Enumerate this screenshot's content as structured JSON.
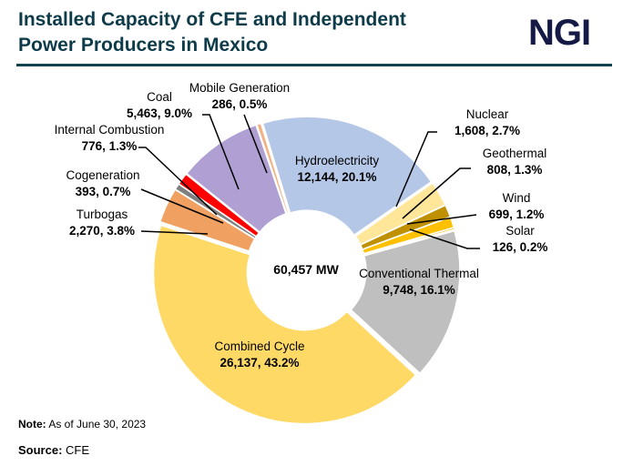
{
  "header": {
    "title_line1": "Installed Capacity of CFE and Independent",
    "title_line2": "Power Producers in Mexico",
    "logo": "NGI"
  },
  "chart_data": {
    "type": "pie",
    "donut": true,
    "title": "Installed Capacity of CFE and Independent Power Producers in Mexico",
    "total_label": "60,457 MW",
    "slices": [
      {
        "name": "Hydroelectricity",
        "value": 12144,
        "label": "12,144, 20.1%",
        "percent": 20.1,
        "color": "#b4c7e7"
      },
      {
        "name": "Nuclear",
        "value": 1608,
        "label": "1,608, 2.7%",
        "percent": 2.7,
        "color": "#ffe699"
      },
      {
        "name": "Geothermal",
        "value": 808,
        "label": "808, 1.3%",
        "percent": 1.3,
        "color": "#bf9000"
      },
      {
        "name": "Wind",
        "value": 699,
        "label": "699, 1.2%",
        "percent": 1.2,
        "color": "#ffc000"
      },
      {
        "name": "Solar",
        "value": 126,
        "label": "126, 0.2%",
        "percent": 0.2,
        "color": "#f5b800"
      },
      {
        "name": "Conventional Thermal",
        "value": 9748,
        "label": "9,748, 16.1%",
        "percent": 16.1,
        "color": "#bfbfbf"
      },
      {
        "name": "Combined Cycle",
        "value": 26137,
        "label": "26,137, 43.2%",
        "percent": 43.2,
        "color": "#ffd966"
      },
      {
        "name": "Turbogas",
        "value": 2270,
        "label": "2,270, 3.8%",
        "percent": 3.8,
        "color": "#f0a060"
      },
      {
        "name": "Cogeneration",
        "value": 393,
        "label": "393, 0.7%",
        "percent": 0.7,
        "color": "#7f7f7f"
      },
      {
        "name": "Internal Combustion",
        "value": 776,
        "label": "776, 1.3%",
        "percent": 1.3,
        "color": "#ff0000"
      },
      {
        "name": "Coal",
        "value": 5463,
        "label": "5,463, 9.0%",
        "percent": 9.0,
        "color": "#b09fd3"
      },
      {
        "name": "Mobile Generation",
        "value": 286,
        "label": "286, 0.5%",
        "percent": 0.5,
        "color": "#f4b183"
      }
    ]
  },
  "footer": {
    "note_label": "Note:",
    "note_text": " As of June 30, 2023",
    "source_label": "Source:",
    "source_text": " CFE"
  }
}
